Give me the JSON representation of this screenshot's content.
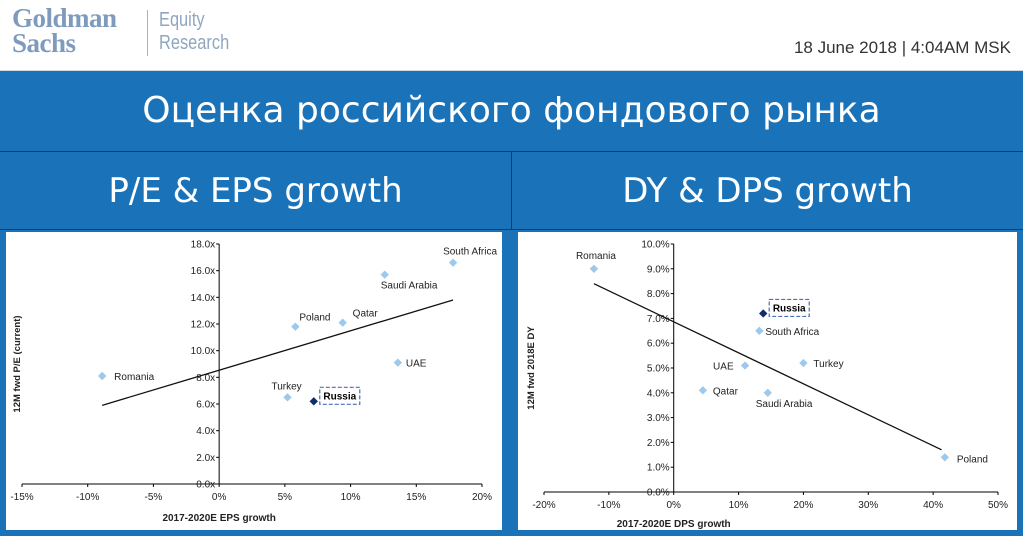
{
  "header": {
    "logo_line1": "Goldman",
    "logo_line2": "Sachs",
    "logo_sub1": "Equity",
    "logo_sub2": "Research",
    "date": "18 June 2018 | 4:04AM MSK"
  },
  "main_title": "Оценка российского фондового рынка",
  "left_subtitle": "P/E & EPS growth",
  "right_subtitle": "DY & DPS growth",
  "colors": {
    "marker": "#9fc9ec",
    "highlight": "#0f2d6b",
    "band": "#1a72b8"
  },
  "chart_data": [
    {
      "type": "scatter",
      "xlabel": "2017-2020E EPS growth",
      "ylabel": "12M fwd P/E (current)",
      "xlim": [
        -15,
        20
      ],
      "ylim": [
        0,
        18
      ],
      "x_ticks": [
        "-15%",
        "-10%",
        "-5%",
        "0%",
        "5%",
        "10%",
        "15%",
        "20%"
      ],
      "x_tick_values": [
        -15,
        -10,
        -5,
        0,
        5,
        10,
        15,
        20
      ],
      "y_ticks": [
        "0.0x",
        "2.0x",
        "4.0x",
        "6.0x",
        "8.0x",
        "10.0x",
        "12.0x",
        "14.0x",
        "16.0x",
        "18.0x"
      ],
      "y_tick_values": [
        0,
        2,
        4,
        6,
        8,
        10,
        12,
        14,
        16,
        18
      ],
      "points": [
        {
          "label": "Romania",
          "x": -8.9,
          "y": 8.1
        },
        {
          "label": "Poland",
          "x": 5.8,
          "y": 11.8
        },
        {
          "label": "Qatar",
          "x": 9.4,
          "y": 12.1
        },
        {
          "label": "Saudi Arabia",
          "x": 12.6,
          "y": 15.7
        },
        {
          "label": "South Africa",
          "x": 17.8,
          "y": 16.6
        },
        {
          "label": "UAE",
          "x": 13.6,
          "y": 9.1
        },
        {
          "label": "Turkey",
          "x": 5.2,
          "y": 6.5
        },
        {
          "label": "Russia",
          "x": 7.2,
          "y": 6.2,
          "highlight": true
        }
      ],
      "trendline": [
        [
          -8.9,
          5.9
        ],
        [
          17.8,
          13.8
        ]
      ]
    },
    {
      "type": "scatter",
      "xlabel": "2017-2020E DPS growth",
      "ylabel": "12M fwd 2018E DY",
      "xlim": [
        -20,
        50
      ],
      "ylim": [
        0,
        10
      ],
      "x_ticks": [
        "-20%",
        "-10%",
        "0%",
        "10%",
        "20%",
        "30%",
        "40%",
        "50%"
      ],
      "x_tick_values": [
        -20,
        -10,
        0,
        10,
        20,
        30,
        40,
        50
      ],
      "y_ticks": [
        "0.0%",
        "1.0%",
        "2.0%",
        "3.0%",
        "4.0%",
        "5.0%",
        "6.0%",
        "7.0%",
        "8.0%",
        "9.0%",
        "10.0%"
      ],
      "y_tick_values": [
        0,
        1,
        2,
        3,
        4,
        5,
        6,
        7,
        8,
        9,
        10
      ],
      "points": [
        {
          "label": "Romania",
          "x": -12.3,
          "y": 9.0
        },
        {
          "label": "South Africa",
          "x": 13.2,
          "y": 6.5
        },
        {
          "label": "Turkey",
          "x": 20.0,
          "y": 5.2
        },
        {
          "label": "UAE",
          "x": 11.0,
          "y": 5.1
        },
        {
          "label": "Qatar",
          "x": 4.5,
          "y": 4.1
        },
        {
          "label": "Saudi Arabia",
          "x": 14.5,
          "y": 4.0
        },
        {
          "label": "Poland",
          "x": 41.8,
          "y": 1.4
        },
        {
          "label": "Russia",
          "x": 13.8,
          "y": 7.2,
          "highlight": true
        }
      ],
      "trendline": [
        [
          -12.3,
          8.4
        ],
        [
          41.3,
          1.7
        ]
      ]
    }
  ]
}
